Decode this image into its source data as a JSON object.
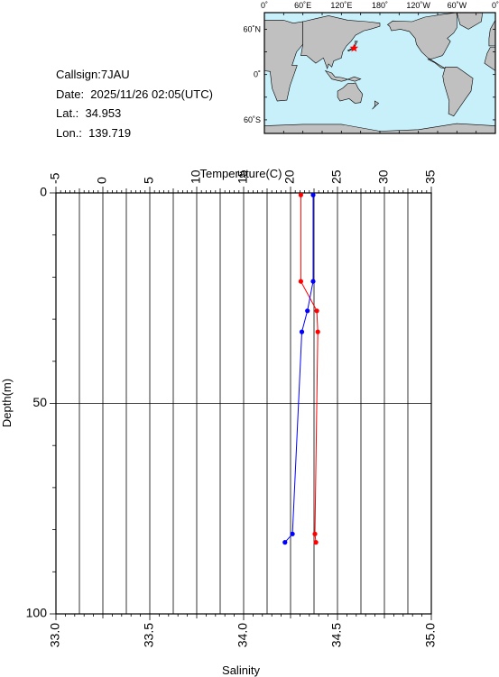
{
  "info": {
    "callsign": "Callsign:7JAU",
    "date": "Date:  2025/11/26 02:05(UTC)",
    "lat": "Lat.:  34.953",
    "lon": "Lon.:  139.719"
  },
  "map": {
    "top_lon_labels": [
      "0˚",
      "60˚E",
      "120˚E",
      "180˚",
      "120˚W",
      "60˚W",
      "0˚"
    ],
    "lat_labels": [
      "60˚N",
      "0˚",
      "60˚S"
    ],
    "ocean_color": "#c8f0fa",
    "land_color": "#c0c0c0",
    "marker_color": "#ff0000",
    "marker": {
      "lon": 139.719,
      "lat": 34.953
    }
  },
  "chart_data": {
    "type": "line",
    "title": "",
    "top_axis": {
      "label": "Temperature(C)",
      "range": [
        -5,
        35
      ],
      "ticks": [
        -5,
        0,
        5,
        10,
        15,
        20,
        25,
        30,
        35
      ]
    },
    "bottom_axis": {
      "label": "Salinity",
      "range": [
        33.0,
        35.0
      ],
      "ticks": [
        "33.0",
        "33.5",
        "34.0",
        "34.5",
        "35.0"
      ]
    },
    "left_axis": {
      "label": "Depth(m)",
      "range": [
        0,
        100
      ],
      "inverted": true,
      "ticks": [
        0,
        50,
        100
      ]
    },
    "grid": {
      "vertical_every_temp": 2.5,
      "horizontal_depths": [
        50
      ]
    },
    "series": [
      {
        "quantity": "temperature",
        "color": "#ff0000",
        "points": [
          [
            21.1,
            0.5
          ],
          [
            21.1,
            21
          ],
          [
            22.8,
            28
          ],
          [
            22.9,
            33
          ],
          [
            22.6,
            81
          ],
          [
            22.7,
            83
          ]
        ]
      },
      {
        "quantity": "salinity",
        "color": "#0000ff",
        "points": [
          [
            34.37,
            0.5
          ],
          [
            34.37,
            21
          ],
          [
            34.34,
            28
          ],
          [
            34.31,
            33
          ],
          [
            34.26,
            81
          ],
          [
            34.22,
            83
          ]
        ]
      }
    ]
  }
}
